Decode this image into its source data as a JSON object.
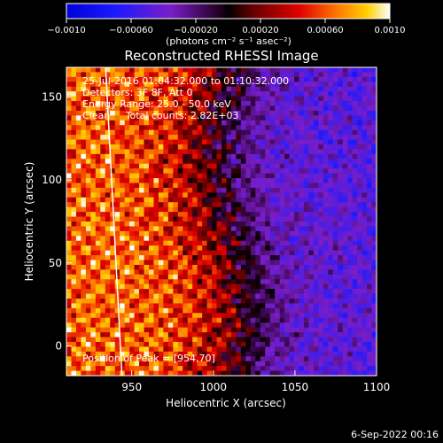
{
  "chart_data": {
    "type": "heatmap",
    "title": "Reconstructed RHESSI Image",
    "xlabel": "Heliocentric X (arcsec)",
    "ylabel": "Heliocentric Y (arcsec)",
    "xlim": [
      910,
      1100
    ],
    "ylim": [
      -18,
      168
    ],
    "x_ticks": [
      {
        "value": 950,
        "label": "950"
      },
      {
        "value": 1000,
        "label": "1000"
      },
      {
        "value": 1050,
        "label": "1050"
      },
      {
        "value": 1100,
        "label": "1100"
      }
    ],
    "y_ticks": [
      {
        "value": 0,
        "label": "0"
      },
      {
        "value": 50,
        "label": "50"
      },
      {
        "value": 100,
        "label": "100"
      },
      {
        "value": 150,
        "label": "150"
      }
    ],
    "colorbar": {
      "range": [
        -0.001,
        0.001
      ],
      "unit_label": "(photons cm⁻² s⁻¹ asec⁻²)",
      "ticks": [
        {
          "value": -0.001,
          "label": "−0.0010"
        },
        {
          "value": -0.0006,
          "label": "−0.00060"
        },
        {
          "value": -0.0002,
          "label": "−0.00020"
        },
        {
          "value": 0.0002,
          "label": "0.00020"
        },
        {
          "value": 0.0006,
          "label": "0.00060"
        },
        {
          "value": 0.001,
          "label": "0.0010"
        }
      ]
    },
    "annotations": [
      "25-Jul-2016 01:04:32.000 to 01:10:32.000",
      "Detectors: 3F 8F, Att 0",
      "Energy Range: 25.0 - 50.0 keV",
      "Clean     Total counts: 2.82E+03"
    ],
    "peak_label": "Position of Peak = [954,70]",
    "peak": {
      "x": 954,
      "y": 70
    },
    "limb_line": [
      [
        934,
        168
      ],
      [
        944,
        -18
      ]
    ]
  },
  "footer": {
    "date": "6-Sep-2022 00:16"
  }
}
